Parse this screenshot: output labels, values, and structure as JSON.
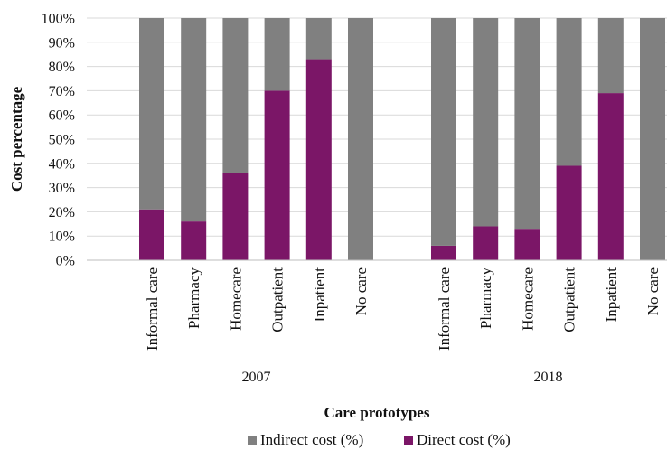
{
  "chart_data": {
    "type": "bar",
    "stacked": true,
    "groups": [
      {
        "label": "2007",
        "categories": [
          "Informal care",
          "Pharmacy",
          "Homecare",
          "Outpatient",
          "Inpatient",
          "No care"
        ]
      },
      {
        "label": "2018",
        "categories": [
          "Informal care",
          "Pharmacy",
          "Homecare",
          "Outpatient",
          "Inpatient",
          "No care"
        ]
      }
    ],
    "series": [
      {
        "name": "Direct cost (%)",
        "color": "#7b1667",
        "values": [
          21,
          16,
          36,
          70,
          83,
          0,
          6,
          14,
          13,
          39,
          69,
          0
        ]
      },
      {
        "name": "Indirect cost (%)",
        "color": "#808080",
        "values": [
          79,
          84,
          64,
          30,
          17,
          100,
          94,
          86,
          87,
          61,
          31,
          100
        ]
      }
    ],
    "legend_order": [
      "Indirect cost (%)",
      "Direct cost (%)"
    ],
    "xlabel": "Care prototypes",
    "ylabel": "Cost percentage",
    "ylim": [
      0,
      100
    ],
    "yticks": [
      "0%",
      "10%",
      "20%",
      "30%",
      "40%",
      "50%",
      "60%",
      "70%",
      "80%",
      "90%",
      "100%"
    ],
    "grid": true,
    "legend_position": "bottom"
  }
}
